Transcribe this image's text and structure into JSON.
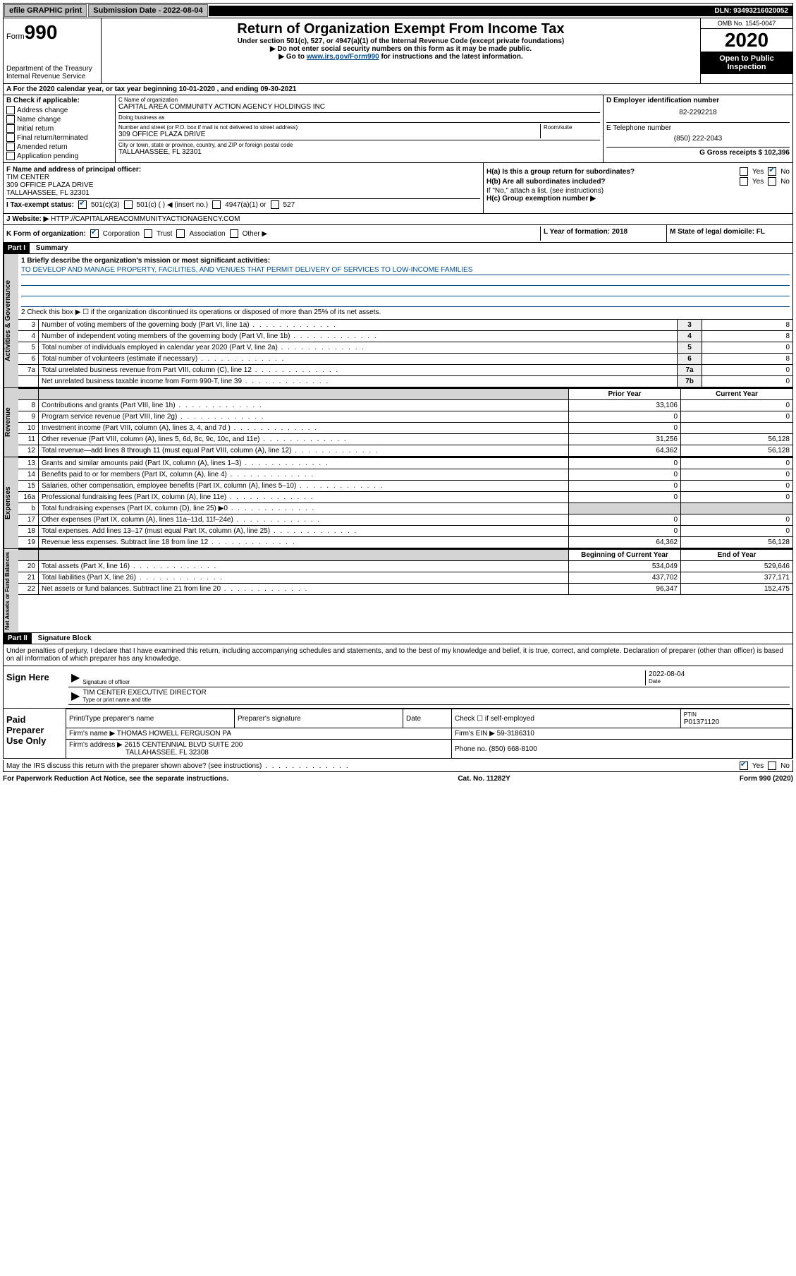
{
  "topbar": {
    "efile": "efile GRAPHIC print",
    "sub_label": "Submission Date - 2022-08-04",
    "dln": "DLN: 93493216020052"
  },
  "header": {
    "form_prefix": "Form",
    "form_num": "990",
    "dept": "Department of the Treasury",
    "irs": "Internal Revenue Service",
    "title": "Return of Organization Exempt From Income Tax",
    "subtitle": "Under section 501(c), 527, or 4947(a)(1) of the Internal Revenue Code (except private foundations)",
    "note1": "▶ Do not enter social security numbers on this form as it may be made public.",
    "note2_pre": "▶ Go to ",
    "note2_link": "www.irs.gov/Form990",
    "note2_post": " for instructions and the latest information.",
    "omb": "OMB No. 1545-0047",
    "year": "2020",
    "open": "Open to Public Inspection"
  },
  "row_a": "A For the 2020 calendar year, or tax year beginning 10-01-2020   , and ending 09-30-2021",
  "sec_b": {
    "hdr": "B Check if applicable:",
    "items": [
      "Address change",
      "Name change",
      "Initial return",
      "Final return/terminated",
      "Amended return",
      "Application pending"
    ]
  },
  "sec_c": {
    "name_lbl": "C Name of organization",
    "name": "CAPITAL AREA COMMUNITY ACTION AGENCY HOLDINGS INC",
    "dba_lbl": "Doing business as",
    "dba": "",
    "addr_lbl": "Number and street (or P.O. box if mail is not delivered to street address)",
    "room_lbl": "Room/suite",
    "addr": "309 OFFICE PLAZA DRIVE",
    "city_lbl": "City or town, state or province, country, and ZIP or foreign postal code",
    "city": "TALLAHASSEE, FL  32301"
  },
  "sec_de": {
    "d_lbl": "D Employer identification number",
    "d_val": "82-2292218",
    "e_lbl": "E Telephone number",
    "e_val": "(850) 222-2043",
    "g_lbl": "G Gross receipts $ 102,396"
  },
  "sec_f": {
    "lbl": "F Name and address of principal officer:",
    "name": "TIM CENTER",
    "addr1": "309 OFFICE PLAZA DRIVE",
    "addr2": "TALLAHASSEE, FL  32301"
  },
  "sec_h": {
    "a": "H(a)  Is this a group return for subordinates?",
    "b": "H(b)  Are all subordinates included?",
    "b_note": "If \"No,\" attach a list. (see instructions)",
    "c": "H(c)  Group exemption number ▶",
    "yes": "Yes",
    "no": "No"
  },
  "sec_i": {
    "lbl": "I Tax-exempt status:",
    "opts": [
      "501(c)(3)",
      "501(c) (  ) ◀ (insert no.)",
      "4947(a)(1) or",
      "527"
    ]
  },
  "sec_j": {
    "lbl": "J   Website: ▶",
    "val": "HTTP://CAPITALAREACOMMUNITYACTIONAGENCY.COM"
  },
  "sec_k": {
    "lbl": "K Form of organization:",
    "opts": [
      "Corporation",
      "Trust",
      "Association",
      "Other ▶"
    ]
  },
  "sec_l": {
    "lbl": "L Year of formation: 2018"
  },
  "sec_m": {
    "lbl": "M State of legal domicile: FL"
  },
  "part1": {
    "hdr": "Part I",
    "title": "Summary",
    "q1_lbl": "1  Briefly describe the organization's mission or most significant activities:",
    "q1_val": "TO DEVELOP AND MANAGE PROPERTY, FACILITIES, AND VENUES THAT PERMIT DELIVERY OF SERVICES TO LOW-INCOME FAMILIES",
    "q2": "2   Check this box ▶ ☐  if the organization discontinued its operations or disposed of more than 25% of its net assets.",
    "rows_gov": [
      {
        "n": "3",
        "t": "Number of voting members of the governing body (Part VI, line 1a)",
        "c": "3",
        "v": "8"
      },
      {
        "n": "4",
        "t": "Number of independent voting members of the governing body (Part VI, line 1b)",
        "c": "4",
        "v": "8"
      },
      {
        "n": "5",
        "t": "Total number of individuals employed in calendar year 2020 (Part V, line 2a)",
        "c": "5",
        "v": "0"
      },
      {
        "n": "6",
        "t": "Total number of volunteers (estimate if necessary)",
        "c": "6",
        "v": "8"
      },
      {
        "n": "7a",
        "t": "Total unrelated business revenue from Part VIII, column (C), line 12",
        "c": "7a",
        "v": "0"
      },
      {
        "n": "",
        "t": "Net unrelated business taxable income from Form 990-T, line 39",
        "c": "7b",
        "v": "0"
      }
    ],
    "col_prior": "Prior Year",
    "col_curr": "Current Year",
    "rows_rev": [
      {
        "n": "8",
        "t": "Contributions and grants (Part VIII, line 1h)",
        "p": "33,106",
        "c": "0"
      },
      {
        "n": "9",
        "t": "Program service revenue (Part VIII, line 2g)",
        "p": "0",
        "c": "0"
      },
      {
        "n": "10",
        "t": "Investment income (Part VIII, column (A), lines 3, 4, and 7d )",
        "p": "0",
        "c": ""
      },
      {
        "n": "11",
        "t": "Other revenue (Part VIII, column (A), lines 5, 6d, 8c, 9c, 10c, and 11e)",
        "p": "31,256",
        "c": "56,128"
      },
      {
        "n": "12",
        "t": "Total revenue—add lines 8 through 11 (must equal Part VIII, column (A), line 12)",
        "p": "64,362",
        "c": "56,128"
      }
    ],
    "rows_exp": [
      {
        "n": "13",
        "t": "Grants and similar amounts paid (Part IX, column (A), lines 1–3)",
        "p": "0",
        "c": "0"
      },
      {
        "n": "14",
        "t": "Benefits paid to or for members (Part IX, column (A), line 4)",
        "p": "0",
        "c": "0"
      },
      {
        "n": "15",
        "t": "Salaries, other compensation, employee benefits (Part IX, column (A), lines 5–10)",
        "p": "0",
        "c": "0"
      },
      {
        "n": "16a",
        "t": "Professional fundraising fees (Part IX, column (A), line 11e)",
        "p": "0",
        "c": "0"
      },
      {
        "n": "b",
        "t": "Total fundraising expenses (Part IX, column (D), line 25) ▶0",
        "p": "",
        "c": "",
        "shade": true
      },
      {
        "n": "17",
        "t": "Other expenses (Part IX, column (A), lines 11a–11d, 11f–24e)",
        "p": "0",
        "c": "0"
      },
      {
        "n": "18",
        "t": "Total expenses. Add lines 13–17 (must equal Part IX, column (A), line 25)",
        "p": "0",
        "c": "0"
      },
      {
        "n": "19",
        "t": "Revenue less expenses. Subtract line 18 from line 12",
        "p": "64,362",
        "c": "56,128"
      }
    ],
    "col_bcy": "Beginning of Current Year",
    "col_eoy": "End of Year",
    "rows_net": [
      {
        "n": "20",
        "t": "Total assets (Part X, line 16)",
        "p": "534,049",
        "c": "529,646"
      },
      {
        "n": "21",
        "t": "Total liabilities (Part X, line 26)",
        "p": "437,702",
        "c": "377,171"
      },
      {
        "n": "22",
        "t": "Net assets or fund balances. Subtract line 21 from line 20",
        "p": "96,347",
        "c": "152,475"
      }
    ]
  },
  "side_labels": {
    "gov": "Activities & Governance",
    "rev": "Revenue",
    "exp": "Expenses",
    "net": "Net Assets or Fund Balances"
  },
  "part2": {
    "hdr": "Part II",
    "title": "Signature Block",
    "decl": "Under penalties of perjury, I declare that I have examined this return, including accompanying schedules and statements, and to the best of my knowledge and belief, it is true, correct, and complete. Declaration of preparer (other than officer) is based on all information of which preparer has any knowledge.",
    "sign_here": "Sign Here",
    "sig_officer": "Signature of officer",
    "date_lbl": "Date",
    "date_val": "2022-08-04",
    "name_title": "TIM CENTER  EXECUTIVE DIRECTOR",
    "name_title_lbl": "Type or print name and title",
    "paid": "Paid Preparer Use Only",
    "prep_name_lbl": "Print/Type preparer's name",
    "prep_sig_lbl": "Preparer's signature",
    "prep_date_lbl": "Date",
    "check_se": "Check ☐ if self-employed",
    "ptin_lbl": "PTIN",
    "ptin_val": "P01371120",
    "firm_name_lbl": "Firm's name   ▶",
    "firm_name": "THOMAS HOWELL FERGUSON PA",
    "firm_ein_lbl": "Firm's EIN ▶",
    "firm_ein": "59-3186310",
    "firm_addr_lbl": "Firm's address ▶",
    "firm_addr1": "2615 CENTENNIAL BLVD SUITE 200",
    "firm_addr2": "TALLAHASSEE, FL  32308",
    "phone_lbl": "Phone no.",
    "phone_val": "(850) 668-8100",
    "discuss": "May the IRS discuss this return with the preparer shown above? (see instructions)"
  },
  "footer": {
    "left": "For Paperwork Reduction Act Notice, see the separate instructions.",
    "mid": "Cat. No. 11282Y",
    "right": "Form 990 (2020)"
  }
}
